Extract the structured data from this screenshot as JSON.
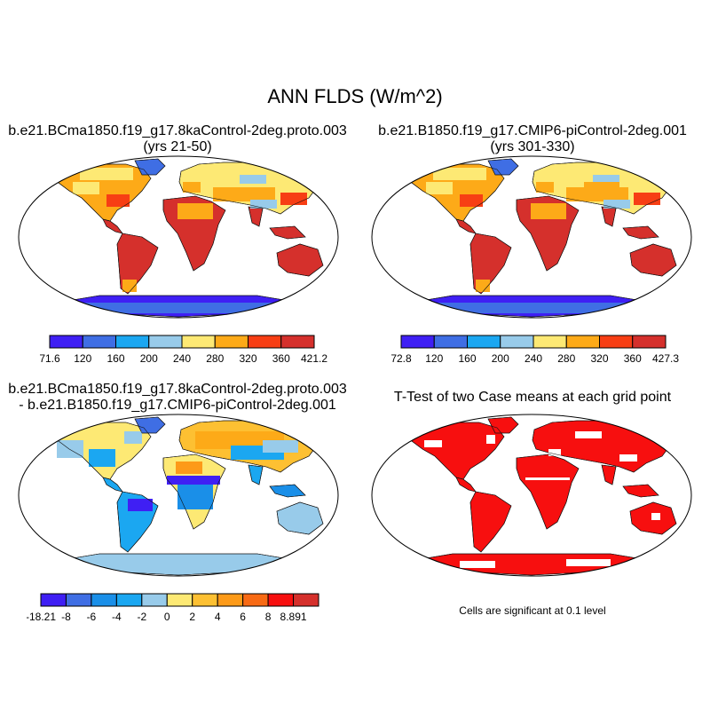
{
  "title": "ANN FLDS (W/m^2)",
  "panels": [
    {
      "id": "case1",
      "title_line1": "b.e21.BCma1850.f19_g17.8kaControl-2deg.proto.003",
      "title_line2": "(yrs 21-50)",
      "colorbar": {
        "colors": [
          "#3f1ff4",
          "#3f6ee4",
          "#1ba7f1",
          "#98cbea",
          "#fde974",
          "#fdaa18",
          "#f73e14",
          "#d5302c"
        ],
        "labels": [
          "71.6",
          "120",
          "160",
          "200",
          "240",
          "280",
          "320",
          "360",
          "421.2"
        ]
      }
    },
    {
      "id": "case2",
      "title_line1": "b.e21.B1850.f19_g17.CMIP6-piControl-2deg.001",
      "title_line2": "(yrs 301-330)",
      "colorbar": {
        "colors": [
          "#3f1ff4",
          "#3f6ee4",
          "#1ba7f1",
          "#98cbea",
          "#fde974",
          "#fdaa18",
          "#f73e14",
          "#d5302c"
        ],
        "labels": [
          "72.8",
          "120",
          "160",
          "200",
          "240",
          "280",
          "320",
          "360",
          "427.3"
        ]
      }
    },
    {
      "id": "diff",
      "title_line1": "b.e21.BCma1850.f19_g17.8kaControl-2deg.proto.003",
      "title_line2": "- b.e21.B1850.f19_g17.CMIP6-piControl-2deg.001",
      "colorbar": {
        "colors": [
          "#3f1ff4",
          "#3f6ee4",
          "#1a8fe8",
          "#1ba7f1",
          "#98cbea",
          "#fde974",
          "#fdc032",
          "#fd9a18",
          "#f86a14",
          "#f70f0f",
          "#d5302c"
        ],
        "labels": [
          "-18.21",
          "-8",
          "-6",
          "-4",
          "-2",
          "0",
          "2",
          "4",
          "6",
          "8",
          "8.891"
        ]
      }
    },
    {
      "id": "ttest",
      "title_line1": "T-Test of two Case means at each grid point",
      "title_line2": "",
      "note": "Cells are significant at 0.1 level"
    }
  ]
}
